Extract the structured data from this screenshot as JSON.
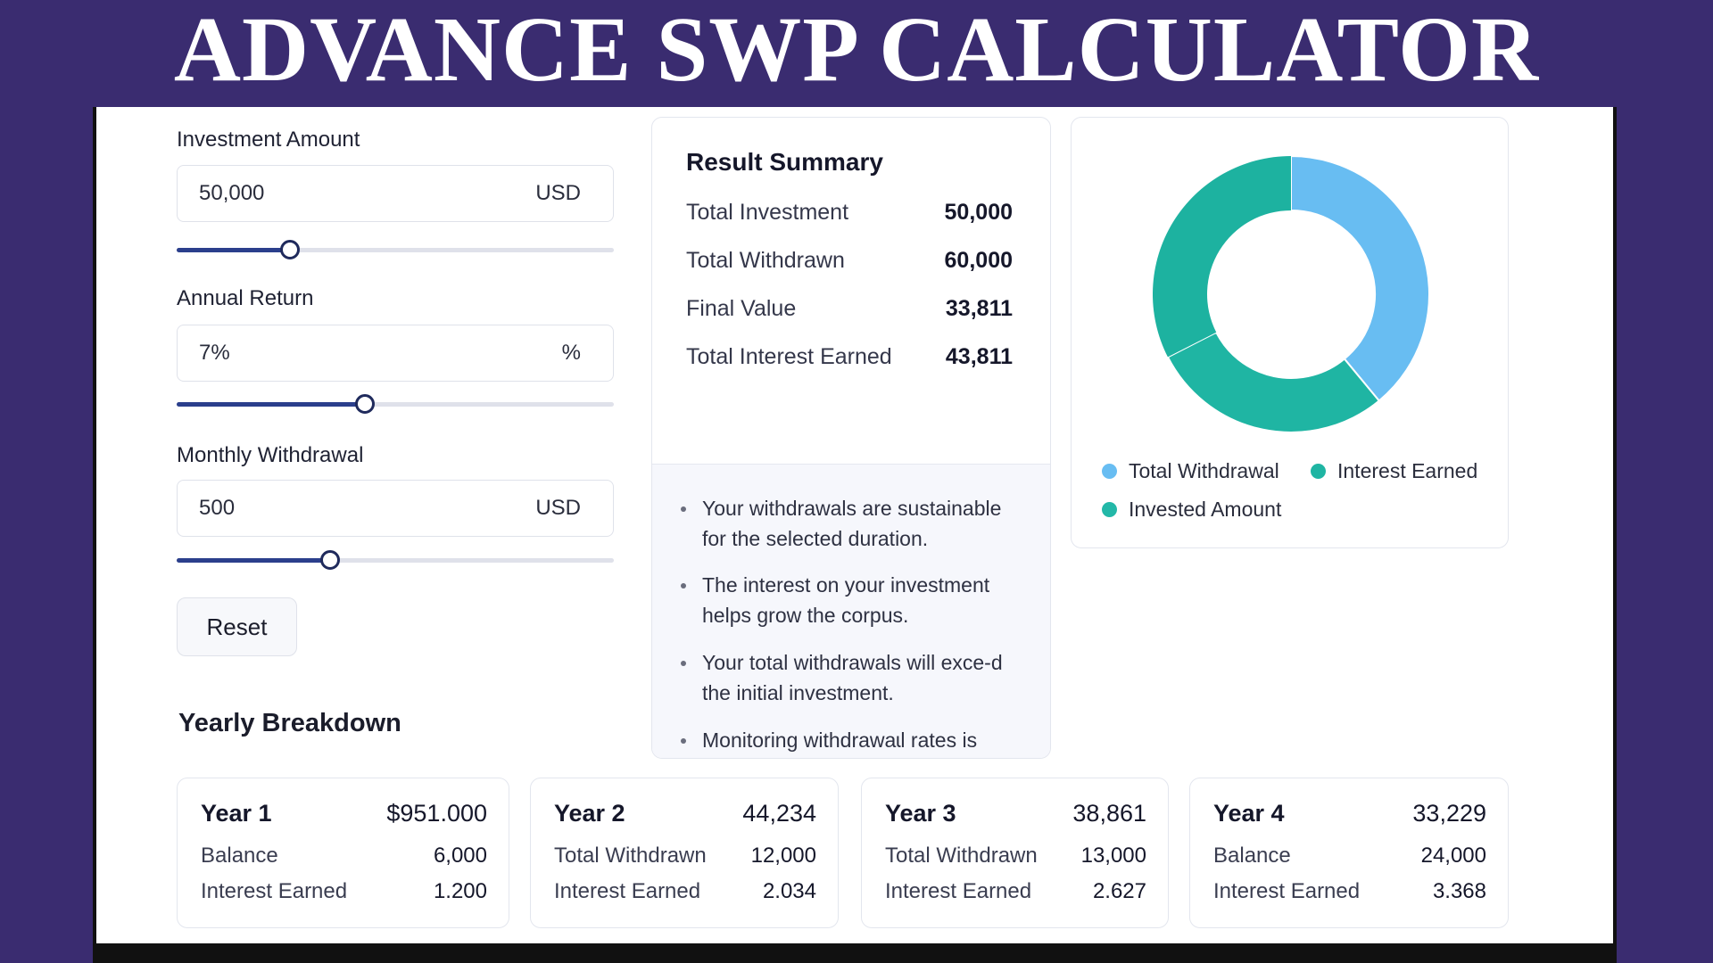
{
  "title": "ADVANCE SWP CALCULATOR",
  "inputs": [
    {
      "label": "Investment Amount",
      "value": "50,000",
      "unit": "USD",
      "slider": 0.26
    },
    {
      "label": "Annual Return",
      "value": "7%",
      "unit": "%",
      "slider": 0.43
    },
    {
      "label": "Monthly Withdrawal",
      "value": "500",
      "unit": "USD",
      "slider": 0.35
    }
  ],
  "reset_label": "Reset",
  "yearly_title": "Yearly Breakdown",
  "summary": {
    "title": "Result Summary",
    "rows": [
      {
        "label": "Total Investment",
        "value": "50,000"
      },
      {
        "label": "Total Withdrawn",
        "value": "60,000"
      },
      {
        "label": "Final Value",
        "value": "33,811"
      },
      {
        "label": "Total Interest Earned",
        "value": "43,811"
      }
    ],
    "bullets": [
      "Your withdrawals are sustainable for the selected duration.",
      "The interest on your investment helps grow the corpus.",
      "Your total withdrawals will exce-d the initial investment.",
      "Monitoring withdrawaɩl rates is crucial to maintain corpus longe-vity."
    ]
  },
  "chart_data": {
    "type": "pie",
    "donut": true,
    "legend_placement": "bottom",
    "series": [
      {
        "name": "Total Withdrawal",
        "value": 60000,
        "color": "#68bdf2"
      },
      {
        "name": "Interest Earned",
        "value": 43811,
        "color": "#1fb5a3"
      },
      {
        "name": "Invested Amount",
        "value": 50000,
        "color": "#1fb5a3"
      }
    ]
  },
  "years": [
    {
      "year": "Year 1",
      "value": "$951.000",
      "rows": [
        {
          "label": "Balance",
          "value": "6,000"
        },
        {
          "label": "Interest Earned",
          "value": "1.200"
        }
      ]
    },
    {
      "year": "Year 2",
      "value": "44,234",
      "rows": [
        {
          "label": "Total Withdrawn",
          "value": "12,000"
        },
        {
          "label": "Interest Earned",
          "value": "2.034"
        }
      ]
    },
    {
      "year": "Year 3",
      "value": "38,861",
      "rows": [
        {
          "label": "Total Withdrawn",
          "value": "13,000"
        },
        {
          "label": "Interest Earned",
          "value": "2.627"
        }
      ]
    },
    {
      "year": "Year 4",
      "value": "33,229",
      "rows": [
        {
          "label": "Balance",
          "value": "24,000"
        },
        {
          "label": "Interest Earned",
          "value": "3.368"
        }
      ]
    }
  ]
}
